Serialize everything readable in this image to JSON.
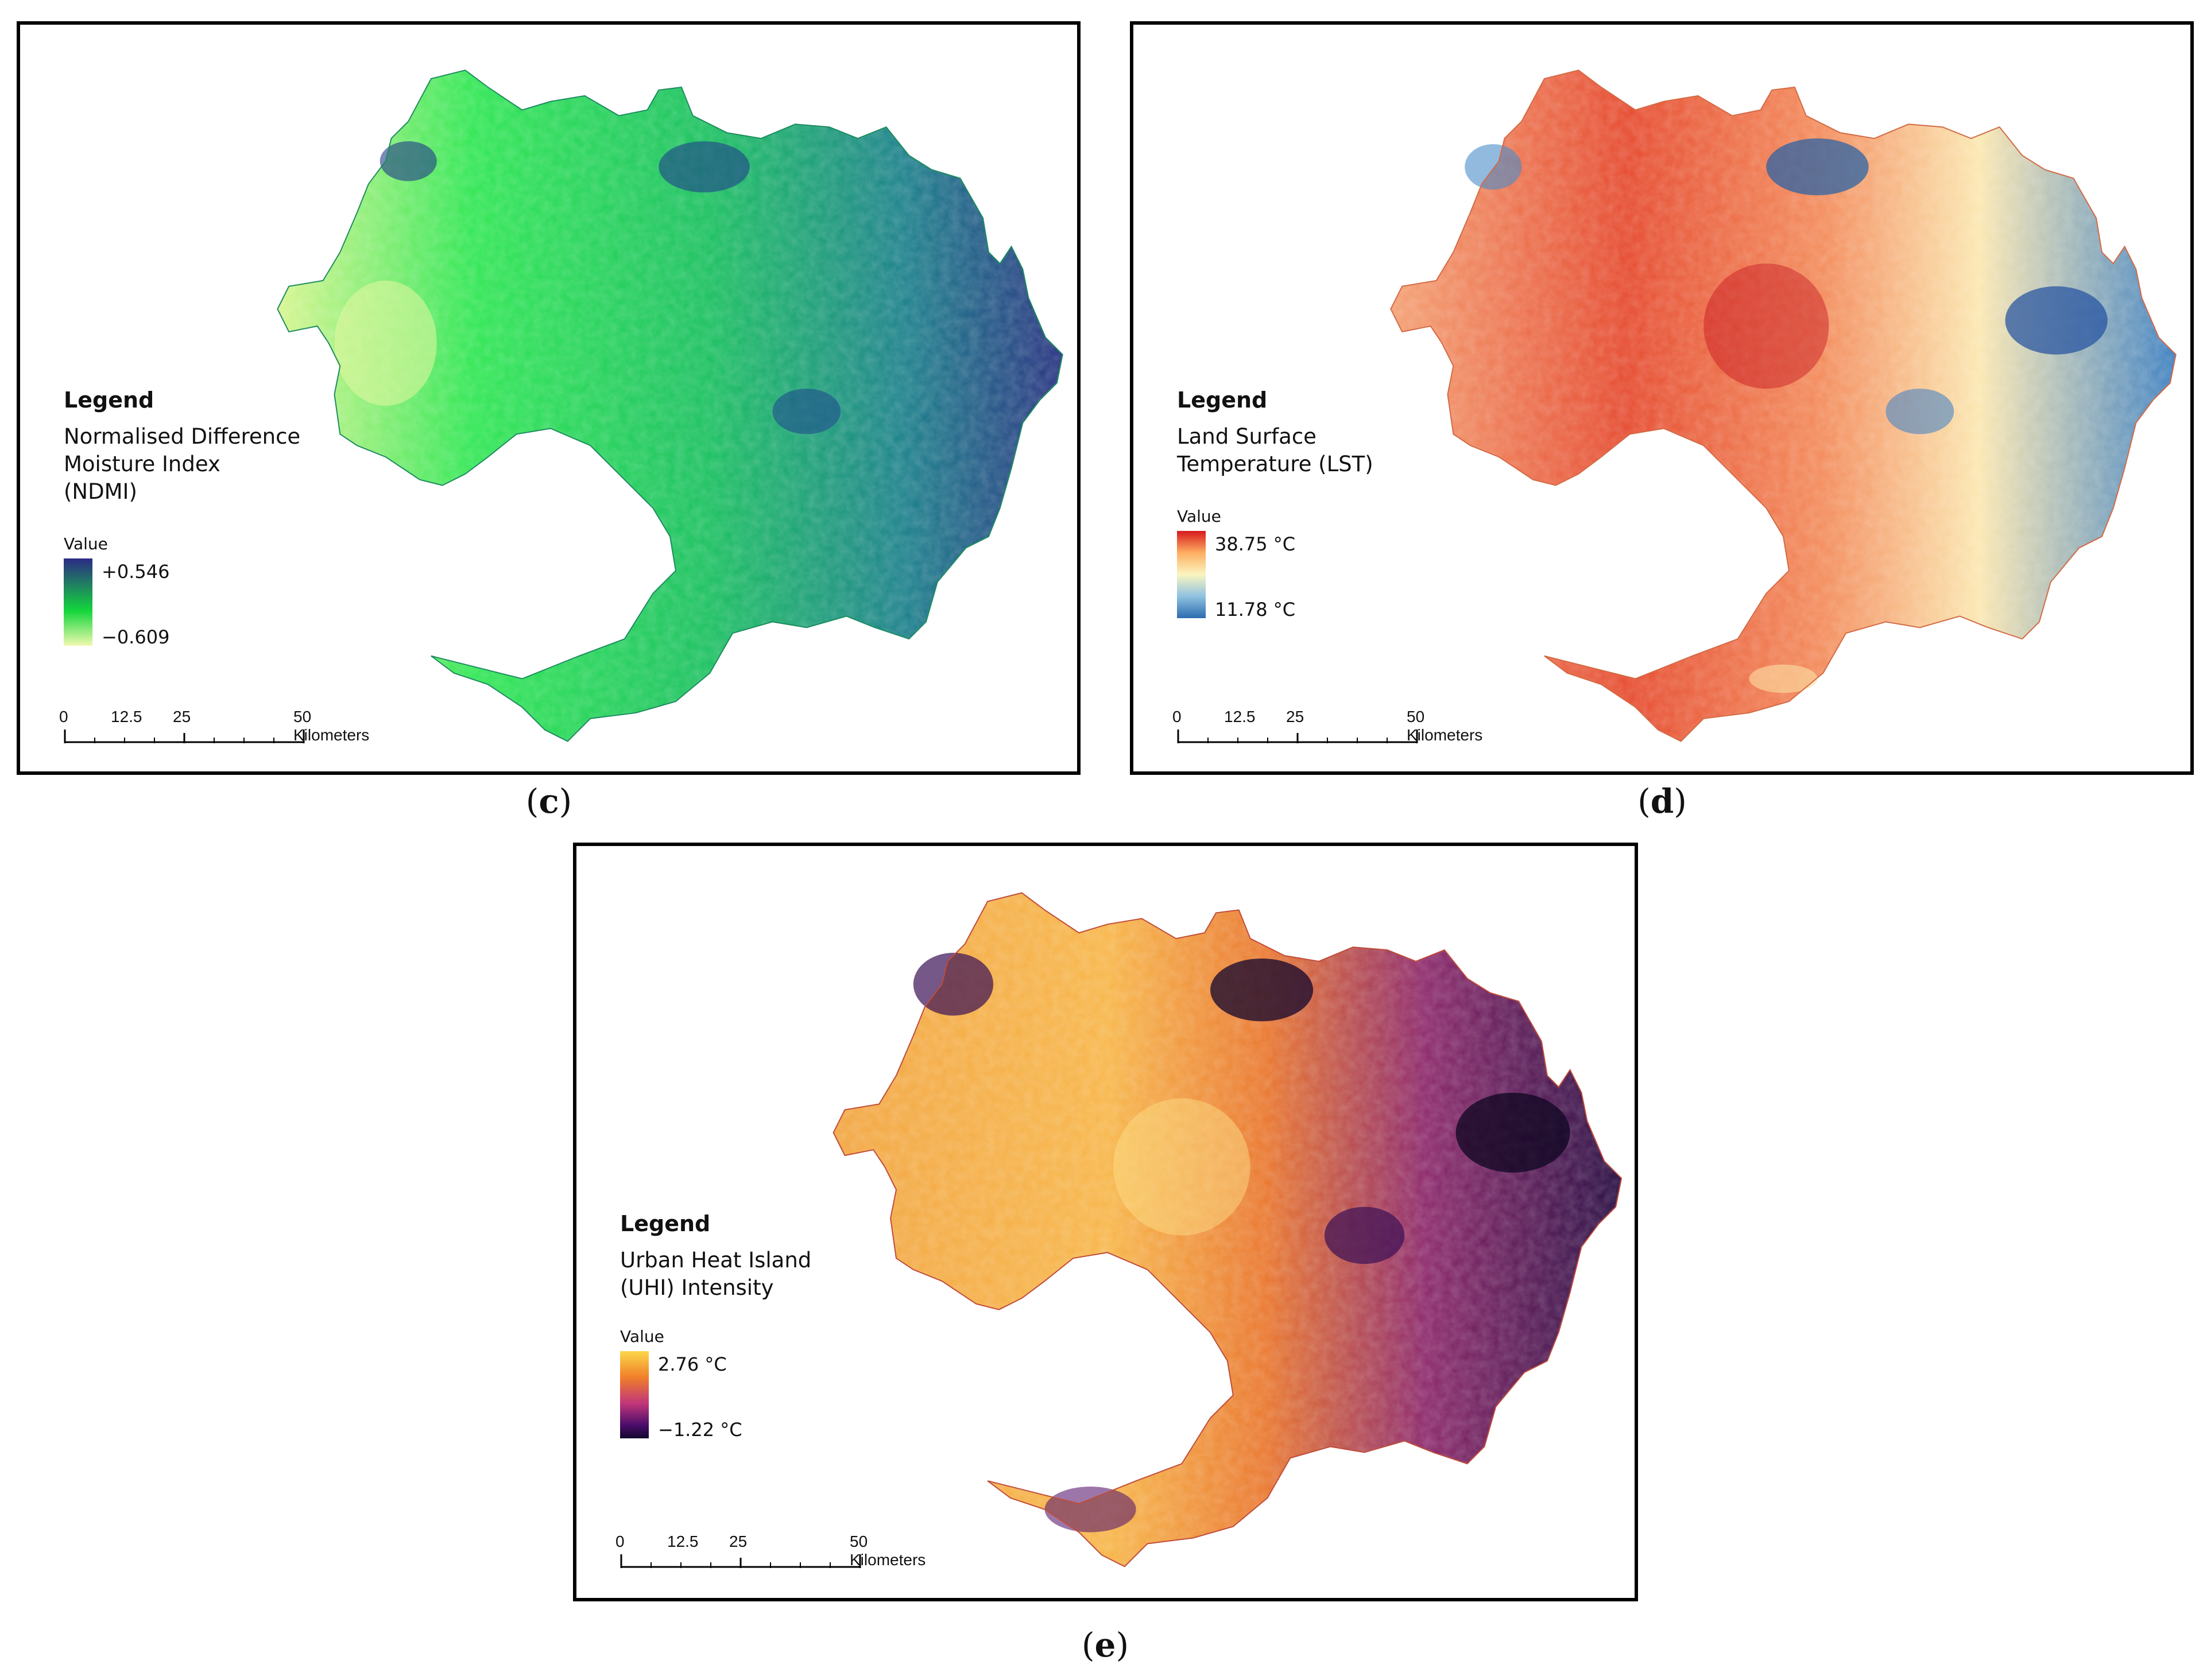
{
  "panels": {
    "c": {
      "caption_letter": "c",
      "legend_title": "Legend",
      "legend_desc": "Normalised Difference\nMoisture Index\n(NDMI)",
      "value_label": "Value",
      "high": "+0.546",
      "low": "−0.609",
      "colors": {
        "high": "#2c2a86",
        "mid": "#14d63c",
        "low": "#e8f7a8",
        "base": "#19b956"
      }
    },
    "d": {
      "caption_letter": "d",
      "legend_title": "Legend",
      "legend_desc": "Land Surface\nTemperature (LST)",
      "value_label": "Value",
      "high": "38.75 °C",
      "low": "11.78 °C",
      "colors": {
        "high": "#d7191c",
        "mid": "#fbf5c0",
        "low": "#2b6cb0",
        "base": "#f07a4a"
      }
    },
    "e": {
      "caption_letter": "e",
      "legend_title": "Legend",
      "legend_desc": "Urban Heat Island\n(UHI) Intensity",
      "value_label": "Value",
      "high": "2.76 °C",
      "low": "−1.22 °C",
      "colors": {
        "high": "#fcd84a",
        "mid": "#c1367a",
        "low": "#12062e",
        "base": "#f28a2a"
      }
    }
  },
  "scalebar": {
    "ticks": [
      "0",
      "12.5",
      "25",
      "50"
    ],
    "unit": "Kilometers"
  }
}
